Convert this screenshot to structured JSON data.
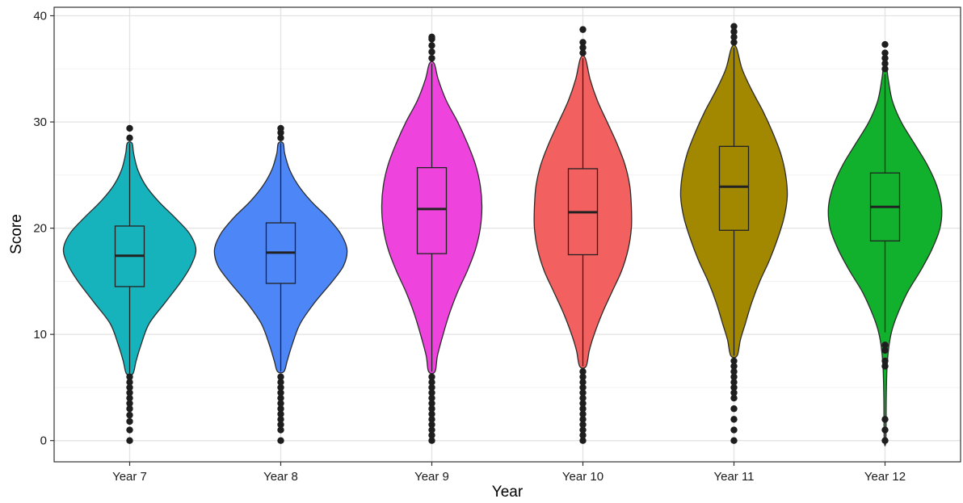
{
  "chart_data": {
    "type": "violin",
    "title": "",
    "xlabel": "Year",
    "ylabel": "Score",
    "ylim": [
      -2,
      40.8
    ],
    "yticks": [
      0,
      10,
      20,
      30,
      40
    ],
    "y_tick_labels": [
      "0",
      "10",
      "20",
      "30",
      "40"
    ],
    "grid": true,
    "legend": "none",
    "categories": [
      "Year 7",
      "Year 8",
      "Year 9",
      "Year 10",
      "Year 11",
      "Year 12"
    ],
    "series": [
      {
        "category": "Year 7",
        "color": "#17B3BC",
        "box": {
          "q1": 14.5,
          "median": 17.4,
          "q3": 20.2,
          "whisker_low": 6.3,
          "whisker_high": 28.0
        },
        "outliers": [
          0,
          1.0,
          1.8,
          2.4,
          3.0,
          3.5,
          4.0,
          4.5,
          5.0,
          5.5,
          6.0,
          28.5,
          29.4
        ],
        "density": [
          [
            6.3,
            4
          ],
          [
            7.5,
            8
          ],
          [
            9,
            14
          ],
          [
            11,
            24
          ],
          [
            13,
            44
          ],
          [
            15,
            64
          ],
          [
            16.5,
            76
          ],
          [
            18,
            82
          ],
          [
            19.5,
            74
          ],
          [
            21,
            56
          ],
          [
            22.5,
            36
          ],
          [
            24,
            20
          ],
          [
            25.5,
            10
          ],
          [
            27,
            5
          ],
          [
            28,
            3
          ]
        ]
      },
      {
        "category": "Year 8",
        "color": "#4D86F7",
        "box": {
          "q1": 14.8,
          "median": 17.7,
          "q3": 20.5,
          "whisker_low": 6.5,
          "whisker_high": 28.0
        },
        "outliers": [
          0,
          1.0,
          1.5,
          2.0,
          2.5,
          3.0,
          3.5,
          4.0,
          4.5,
          5.0,
          5.5,
          6.0,
          28.5,
          29.0,
          29.4
        ],
        "density": [
          [
            6.5,
            4
          ],
          [
            7.5,
            8
          ],
          [
            9,
            14
          ],
          [
            11,
            24
          ],
          [
            13,
            42
          ],
          [
            15,
            64
          ],
          [
            16.5,
            78
          ],
          [
            18,
            82
          ],
          [
            19.5,
            74
          ],
          [
            21,
            58
          ],
          [
            22.5,
            38
          ],
          [
            24,
            22
          ],
          [
            25.5,
            11
          ],
          [
            27,
            5
          ],
          [
            28,
            3
          ]
        ]
      },
      {
        "category": "Year 9",
        "color": "#EE44DD",
        "box": {
          "q1": 17.6,
          "median": 21.8,
          "q3": 25.7,
          "whisker_low": 6.5,
          "whisker_high": 35.5
        },
        "outliers": [
          0,
          0.5,
          1.0,
          1.5,
          2.0,
          2.5,
          3.0,
          3.5,
          4.0,
          4.5,
          5.0,
          5.5,
          6.0,
          36.0,
          36.6,
          37.2,
          37.8,
          38.0
        ],
        "density": [
          [
            6.5,
            4
          ],
          [
            8,
            7
          ],
          [
            10,
            14
          ],
          [
            12,
            22
          ],
          [
            14,
            32
          ],
          [
            16,
            44
          ],
          [
            18,
            54
          ],
          [
            20,
            60
          ],
          [
            22,
            62
          ],
          [
            24,
            60
          ],
          [
            26,
            54
          ],
          [
            28,
            44
          ],
          [
            30,
            32
          ],
          [
            32,
            18
          ],
          [
            34,
            8
          ],
          [
            35.5,
            3
          ]
        ]
      },
      {
        "category": "Year 10",
        "color": "#F2615F",
        "box": {
          "q1": 17.5,
          "median": 21.5,
          "q3": 25.6,
          "whisker_low": 7.0,
          "whisker_high": 36.0
        },
        "outliers": [
          0,
          0.5,
          1.0,
          1.5,
          2.0,
          2.5,
          3.0,
          3.5,
          4.0,
          4.5,
          5.0,
          5.5,
          6.0,
          6.5,
          36.5,
          37.0,
          37.5,
          38.7
        ],
        "density": [
          [
            7,
            4
          ],
          [
            8.5,
            8
          ],
          [
            10,
            14
          ],
          [
            12,
            24
          ],
          [
            14,
            36
          ],
          [
            16,
            48
          ],
          [
            18,
            56
          ],
          [
            20,
            60
          ],
          [
            22,
            60
          ],
          [
            24,
            58
          ],
          [
            26,
            52
          ],
          [
            28,
            42
          ],
          [
            30,
            30
          ],
          [
            32,
            18
          ],
          [
            34,
            9
          ],
          [
            36,
            3
          ]
        ]
      },
      {
        "category": "Year 11",
        "color": "#A18800",
        "box": {
          "q1": 19.8,
          "median": 23.9,
          "q3": 27.7,
          "whisker_low": 8.0,
          "whisker_high": 37.0
        },
        "outliers": [
          0,
          1.0,
          2.0,
          3.0,
          4.0,
          4.5,
          5.0,
          5.5,
          6.0,
          6.5,
          7.0,
          7.5,
          37.5,
          38.0,
          38.5,
          39.0
        ],
        "density": [
          [
            8,
            4
          ],
          [
            9.5,
            8
          ],
          [
            11,
            14
          ],
          [
            13,
            22
          ],
          [
            15,
            32
          ],
          [
            17,
            44
          ],
          [
            19,
            54
          ],
          [
            21,
            62
          ],
          [
            23,
            66
          ],
          [
            25,
            64
          ],
          [
            27,
            58
          ],
          [
            29,
            48
          ],
          [
            31,
            36
          ],
          [
            33,
            22
          ],
          [
            35,
            10
          ],
          [
            37,
            3
          ]
        ]
      },
      {
        "category": "Year 12",
        "color": "#12B12D",
        "box": {
          "q1": 18.8,
          "median": 22.0,
          "q3": 25.2,
          "whisker_low": 10.2,
          "whisker_high": 34.5
        },
        "outliers": [
          0,
          1.0,
          2.0,
          7.0,
          7.5,
          8.5,
          9.0,
          35.0,
          35.5,
          36.0,
          36.5,
          37.3
        ],
        "density": [
          [
            0,
            1
          ],
          [
            4,
            1.5
          ],
          [
            7,
            2.5
          ],
          [
            9,
            5
          ],
          [
            10.5,
            9
          ],
          [
            12,
            16
          ],
          [
            14,
            28
          ],
          [
            16,
            44
          ],
          [
            18,
            58
          ],
          [
            20,
            68
          ],
          [
            22,
            70
          ],
          [
            24,
            64
          ],
          [
            26,
            52
          ],
          [
            28,
            36
          ],
          [
            30,
            20
          ],
          [
            32,
            9
          ],
          [
            34,
            4
          ],
          [
            35,
            2
          ]
        ]
      }
    ]
  }
}
